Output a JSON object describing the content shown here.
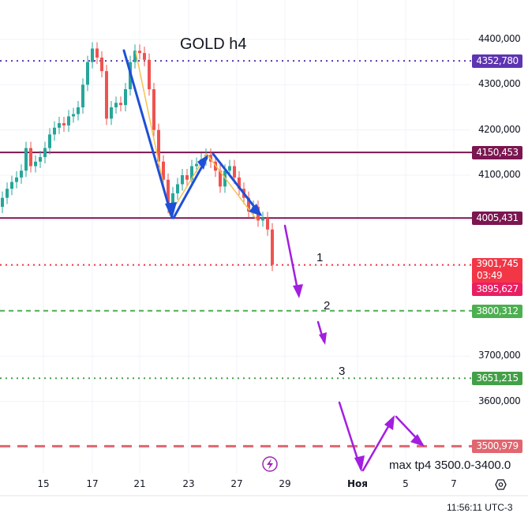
{
  "chart_data": {
    "type": "candlestick",
    "title": "GOLD h4",
    "annotation": "max tp4 3500.0-3400.0",
    "wave_labels": [
      "1",
      "2",
      "3"
    ],
    "y_ticks": [
      "4400,000",
      "4300,000",
      "4200,000",
      "4100,000",
      "3700,000",
      "3600,000"
    ],
    "y_tick_values": [
      4400,
      4300,
      4200,
      4100,
      3700,
      3600
    ],
    "ylim": [
      3440,
      4490
    ],
    "x_ticks": [
      "15",
      "17",
      "21",
      "23",
      "27",
      "29",
      "Ноя",
      "5",
      "7"
    ],
    "grid": true,
    "colors": {
      "up": "#26a69a",
      "down": "#ef5350"
    },
    "candles_close": [
      4050,
      4070,
      4085,
      4095,
      4110,
      4160,
      4120,
      4130,
      4140,
      4160,
      4190,
      4205,
      4215,
      4210,
      4230,
      4235,
      4250,
      4300,
      4350,
      4380,
      4360,
      4330,
      4225,
      4250,
      4260,
      4255,
      4290,
      4350,
      4375,
      4370,
      4355,
      4290,
      4200,
      4130,
      4090,
      4030,
      4060,
      4080,
      4100,
      4090,
      4120,
      4125,
      4135,
      4145,
      4130,
      4110,
      4075,
      4110,
      4120,
      4095,
      4070,
      4050,
      4020,
      4030,
      4000,
      4005,
      3980,
      3902
    ],
    "first_open": 4030,
    "levels": [
      {
        "price": 4352.78,
        "label": "4352,780",
        "style": "dotted",
        "color": "#5e35b1"
      },
      {
        "price": 4150.453,
        "label": "4150,453",
        "style": "solid",
        "color": "#7b1650"
      },
      {
        "price": 4005.431,
        "label": "4005,431",
        "style": "solid",
        "color": "#7b1650"
      },
      {
        "price": 3901.745,
        "label": "3901,745",
        "sub": "03:49",
        "style": "dotted",
        "color": "#f23645"
      },
      {
        "price": 3895.627,
        "label": "3895,627",
        "style": "none",
        "color": "#e91e63"
      },
      {
        "price": 3800.312,
        "label": "3800,312",
        "style": "dashed",
        "color": "#4caf50"
      },
      {
        "price": 3651.215,
        "label": "3651,215",
        "style": "dotted",
        "color": "#43a047"
      },
      {
        "price": 3500.979,
        "label": "3500,979",
        "style": "dashed-thick",
        "color": "#e06670"
      }
    ]
  },
  "footer": {
    "clock": "11:56:11 UTC-3"
  },
  "icons": {
    "replay": "lightning-icon",
    "settings": "hexagon-settings-icon"
  }
}
